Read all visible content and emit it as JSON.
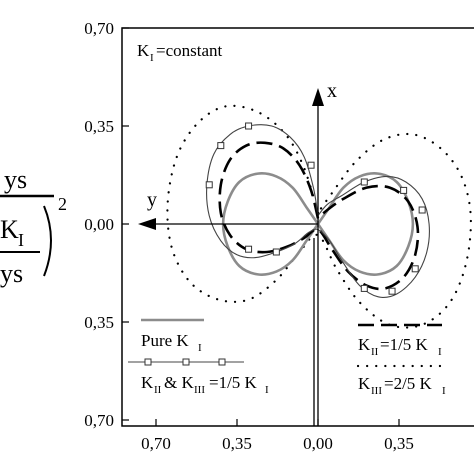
{
  "chart_data": {
    "type": "line",
    "title": "",
    "annotation": "K I =constant",
    "annotation_parts": {
      "k": "K",
      "sub": "I",
      "rest": "=constant"
    },
    "xlabel": "",
    "ylabel": "",
    "left_fraction": {
      "numerator": "ys",
      "denominator_k": "K",
      "denominator_sub": "I",
      "denominator_ys": "ys",
      "exponent": "2"
    },
    "xlim": [
      -0.7,
      0.7
    ],
    "ylim": [
      -0.7,
      0.7
    ],
    "x_ticks": [
      {
        "value": -0.7,
        "label": "0,70"
      },
      {
        "value": -0.35,
        "label": "0,35"
      },
      {
        "value": 0.0,
        "label": "0,00"
      },
      {
        "value": 0.35,
        "label": "0,35"
      }
    ],
    "y_ticks": [
      {
        "value": 0.7,
        "label": "0,70"
      },
      {
        "value": 0.35,
        "label": "0,35"
      },
      {
        "value": 0.0,
        "label": "0,00"
      },
      {
        "value": -0.35,
        "label": "0,35"
      },
      {
        "value": -0.7,
        "label": "0,70"
      }
    ],
    "axis_arrows": {
      "x": "x",
      "y": "y"
    },
    "grid": false,
    "legend": [
      {
        "id": "pure",
        "k": "Pure K",
        "sub": "I",
        "style": "solid-gray"
      },
      {
        "id": "mixed",
        "k": "K",
        "sub": "II",
        "mid": " & K",
        "sub2": "III",
        "rest": "=1/5 K",
        "sub3": "I",
        "style": "solid-thin-square"
      },
      {
        "id": "kii",
        "k": "K",
        "sub": "II",
        "rest": "=1/5 K",
        "sub2": "I",
        "style": "long-dash"
      },
      {
        "id": "kiii",
        "k": "K",
        "sub": "III",
        "rest": "=2/5 K",
        "sub2": "I",
        "style": "dotted"
      }
    ],
    "series": [
      {
        "id": "pure",
        "points": [
          [
            0.0,
            0.0
          ],
          [
            -0.05,
            0.06
          ],
          [
            -0.11,
            0.13
          ],
          [
            -0.18,
            0.17
          ],
          [
            -0.26,
            0.18
          ],
          [
            -0.34,
            0.15
          ],
          [
            -0.39,
            0.08
          ],
          [
            -0.41,
            0.0
          ],
          [
            -0.39,
            -0.08
          ],
          [
            -0.34,
            -0.15
          ],
          [
            -0.26,
            -0.18
          ],
          [
            -0.18,
            -0.17
          ],
          [
            -0.11,
            -0.13
          ],
          [
            -0.05,
            -0.06
          ],
          [
            0.0,
            0.0
          ],
          [
            0.05,
            0.06
          ],
          [
            0.11,
            0.13
          ],
          [
            0.18,
            0.17
          ],
          [
            0.26,
            0.18
          ],
          [
            0.34,
            0.15
          ],
          [
            0.39,
            0.08
          ],
          [
            0.41,
            0.0
          ],
          [
            0.39,
            -0.08
          ],
          [
            0.34,
            -0.15
          ],
          [
            0.26,
            -0.18
          ],
          [
            0.18,
            -0.17
          ],
          [
            0.11,
            -0.13
          ],
          [
            0.05,
            -0.06
          ],
          [
            0.0,
            0.0
          ]
        ]
      },
      {
        "id": "mixed",
        "points": [
          [
            0.0,
            0.03
          ],
          [
            -0.02,
            0.13
          ],
          [
            -0.06,
            0.24
          ],
          [
            -0.12,
            0.31
          ],
          [
            -0.2,
            0.35
          ],
          [
            -0.3,
            0.35
          ],
          [
            -0.38,
            0.32
          ],
          [
            -0.45,
            0.25
          ],
          [
            -0.48,
            0.14
          ],
          [
            -0.47,
            0.03
          ],
          [
            -0.42,
            -0.06
          ],
          [
            -0.35,
            -0.11
          ],
          [
            -0.27,
            -0.12
          ],
          [
            -0.18,
            -0.1
          ],
          [
            -0.1,
            -0.07
          ],
          [
            -0.04,
            -0.03
          ],
          [
            0.0,
            -0.02
          ],
          [
            0.05,
            -0.06
          ],
          [
            0.11,
            -0.14
          ],
          [
            0.18,
            -0.22
          ],
          [
            0.26,
            -0.26
          ],
          [
            0.34,
            -0.25
          ],
          [
            0.42,
            -0.19
          ],
          [
            0.47,
            -0.1
          ],
          [
            0.48,
            0.0
          ],
          [
            0.45,
            0.09
          ],
          [
            0.38,
            0.15
          ],
          [
            0.3,
            0.17
          ],
          [
            0.2,
            0.15
          ],
          [
            0.1,
            0.1
          ],
          [
            0.04,
            0.07
          ],
          [
            0.0,
            0.03
          ]
        ],
        "markers": [
          [
            -0.3,
            0.35
          ],
          [
            -0.42,
            0.28
          ],
          [
            -0.47,
            0.14
          ],
          [
            -0.3,
            -0.09
          ],
          [
            -0.18,
            -0.1
          ],
          [
            -0.03,
            0.21
          ],
          [
            0.2,
            0.15
          ],
          [
            0.37,
            0.12
          ],
          [
            0.45,
            0.05
          ],
          [
            0.42,
            -0.16
          ],
          [
            0.32,
            -0.24
          ],
          [
            0.2,
            -0.23
          ]
        ]
      },
      {
        "id": "kii",
        "points": [
          [
            0.0,
            0.02
          ],
          [
            -0.03,
            0.12
          ],
          [
            -0.08,
            0.21
          ],
          [
            -0.15,
            0.27
          ],
          [
            -0.23,
            0.29
          ],
          [
            -0.31,
            0.28
          ],
          [
            -0.38,
            0.23
          ],
          [
            -0.42,
            0.14
          ],
          [
            -0.42,
            0.04
          ],
          [
            -0.38,
            -0.04
          ],
          [
            -0.31,
            -0.09
          ],
          [
            -0.22,
            -0.1
          ],
          [
            -0.13,
            -0.08
          ],
          [
            -0.06,
            -0.05
          ],
          [
            0.0,
            -0.02
          ],
          [
            0.06,
            -0.09
          ],
          [
            0.13,
            -0.17
          ],
          [
            0.21,
            -0.22
          ],
          [
            0.29,
            -0.23
          ],
          [
            0.37,
            -0.19
          ],
          [
            0.42,
            -0.11
          ],
          [
            0.43,
            -0.01
          ],
          [
            0.39,
            0.08
          ],
          [
            0.31,
            0.13
          ],
          [
            0.21,
            0.13
          ],
          [
            0.11,
            0.09
          ],
          [
            0.04,
            0.05
          ],
          [
            0.0,
            0.02
          ]
        ]
      },
      {
        "id": "kiii",
        "points": [
          [
            0.0,
            0.04
          ],
          [
            -0.06,
            0.2
          ],
          [
            -0.14,
            0.32
          ],
          [
            -0.26,
            0.4
          ],
          [
            -0.4,
            0.42
          ],
          [
            -0.52,
            0.36
          ],
          [
            -0.61,
            0.24
          ],
          [
            -0.65,
            0.07
          ],
          [
            -0.63,
            -0.09
          ],
          [
            -0.55,
            -0.21
          ],
          [
            -0.43,
            -0.27
          ],
          [
            -0.3,
            -0.27
          ],
          [
            -0.18,
            -0.2
          ],
          [
            -0.08,
            -0.1
          ],
          [
            0.0,
            -0.04
          ],
          [
            0.08,
            -0.16
          ],
          [
            0.18,
            -0.28
          ],
          [
            0.31,
            -0.36
          ],
          [
            0.45,
            -0.36
          ],
          [
            0.57,
            -0.28
          ],
          [
            0.64,
            -0.14
          ],
          [
            0.66,
            0.03
          ],
          [
            0.62,
            0.17
          ],
          [
            0.53,
            0.27
          ],
          [
            0.41,
            0.32
          ],
          [
            0.28,
            0.3
          ],
          [
            0.16,
            0.22
          ],
          [
            0.06,
            0.11
          ],
          [
            0.0,
            0.04
          ]
        ]
      }
    ]
  }
}
